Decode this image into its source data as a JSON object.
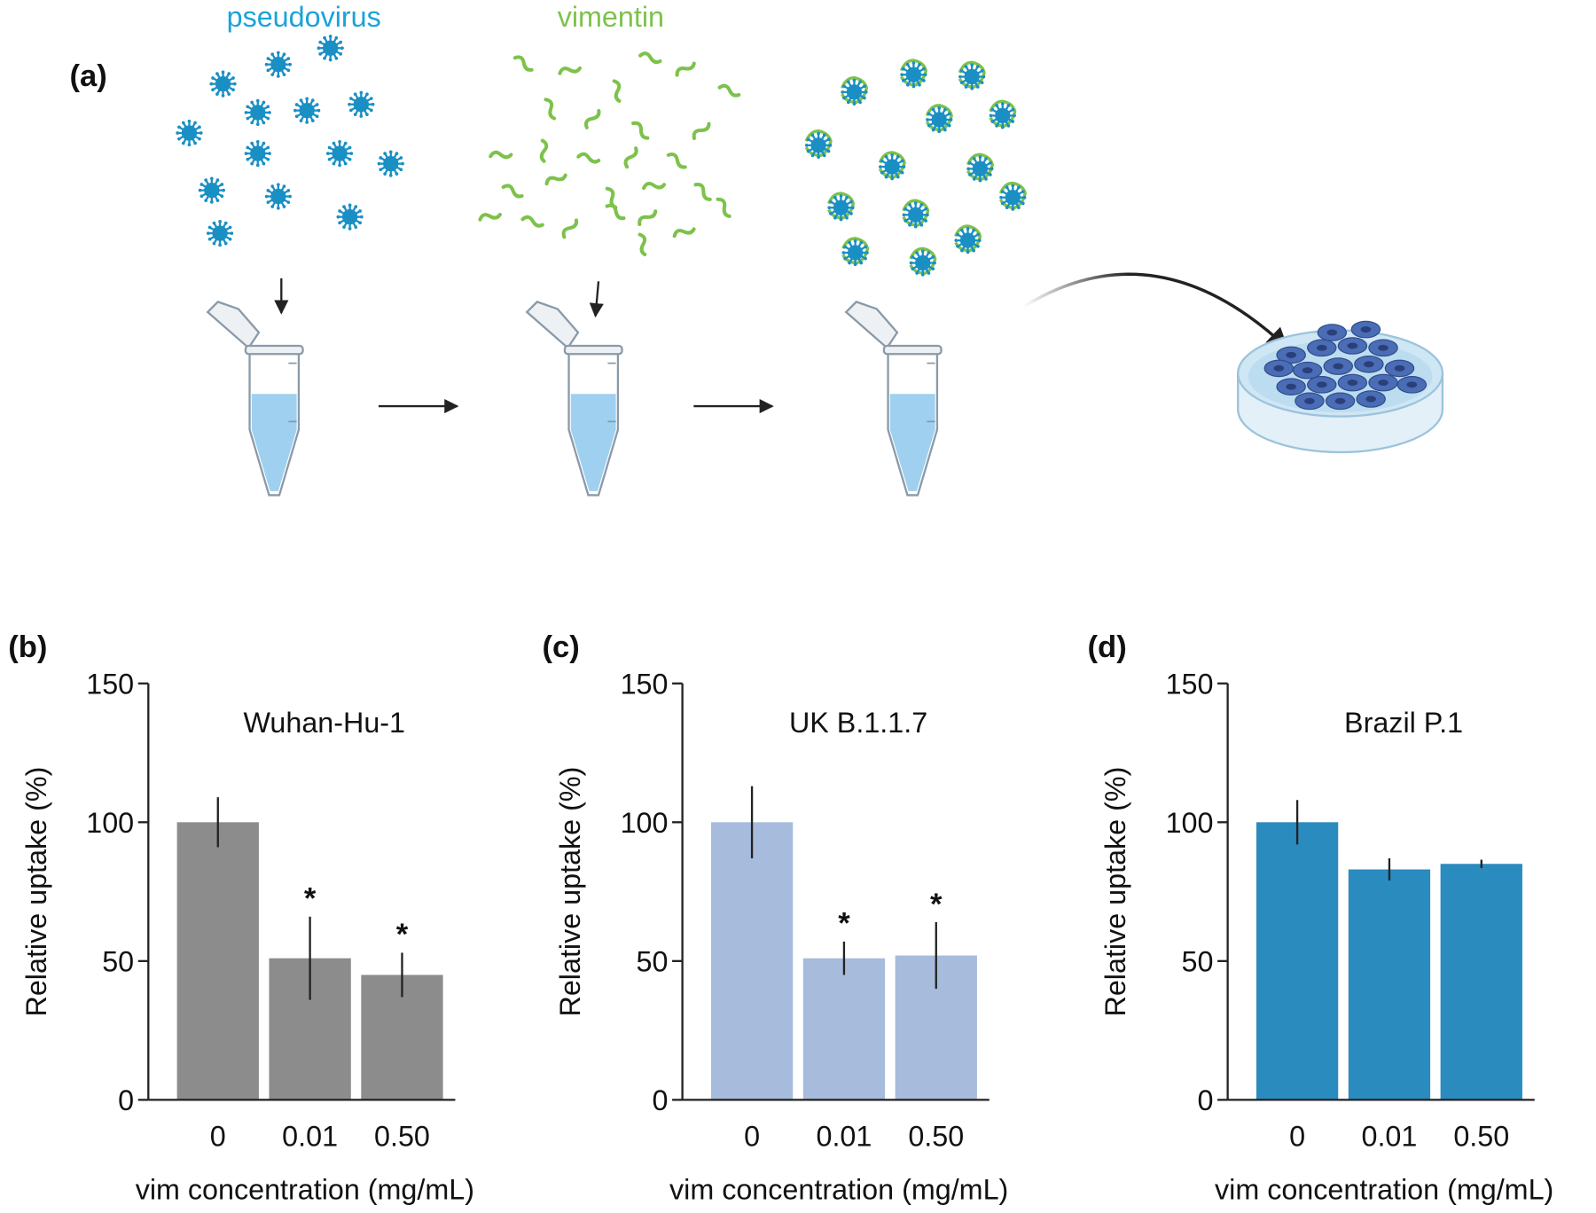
{
  "panel_a": {
    "label": "(a)",
    "pseudovirus": "pseudovirus",
    "vimentin": "vimentin"
  },
  "chart_data": [
    {
      "type": "bar",
      "panel_label": "(b)",
      "title": "Wuhan-Hu-1",
      "xlabel": "vim concentration (mg/mL)",
      "ylabel": "Relative uptake (%)",
      "categories": [
        "0",
        "0.01",
        "0.50"
      ],
      "values": [
        100,
        51,
        45
      ],
      "errors": [
        9,
        15,
        8
      ],
      "annotations": [
        null,
        "*",
        "*"
      ],
      "color": "#8c8c8c",
      "ylim": [
        0,
        150
      ],
      "yticks": [
        0,
        50,
        100,
        150
      ]
    },
    {
      "type": "bar",
      "panel_label": "(c)",
      "title": "UK B.1.1.7",
      "xlabel": "vim concentration (mg/mL)",
      "ylabel": "Relative uptake (%)",
      "categories": [
        "0",
        "0.01",
        "0.50"
      ],
      "values": [
        100,
        51,
        52
      ],
      "errors": [
        13,
        6,
        12
      ],
      "annotations": [
        null,
        "*",
        "*"
      ],
      "color": "#a7bcdc",
      "ylim": [
        0,
        150
      ],
      "yticks": [
        0,
        50,
        100,
        150
      ]
    },
    {
      "type": "bar",
      "panel_label": "(d)",
      "title": "Brazil P.1",
      "xlabel": "vim concentration (mg/mL)",
      "ylabel": "Relative uptake (%)",
      "categories": [
        "0",
        "0.01",
        "0.50"
      ],
      "values": [
        100,
        83,
        85
      ],
      "errors": [
        8,
        4,
        1.5
      ],
      "annotations": [
        null,
        null,
        null
      ],
      "color": "#2a8bbf",
      "ylim": [
        0,
        150
      ],
      "yticks": [
        0,
        50,
        100,
        150
      ]
    }
  ]
}
